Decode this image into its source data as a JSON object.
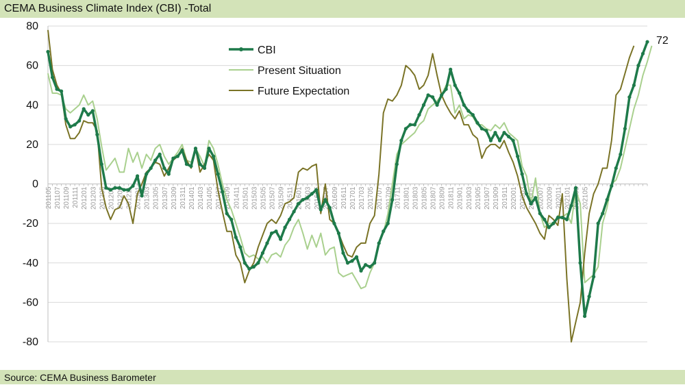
{
  "header": {
    "title": "CEMA Business Climate Index (CBI) -Total"
  },
  "footer": {
    "source": "Source: CEMA Business Barometer"
  },
  "chart_data": {
    "type": "line",
    "title": "CEMA Business Climate Index (CBI) -Total",
    "xlabel": "",
    "ylabel": "",
    "ylim": [
      -80,
      80
    ],
    "yticks": [
      -80,
      -60,
      -40,
      -20,
      0,
      20,
      40,
      60,
      80
    ],
    "grid": true,
    "legend_position": "top-center",
    "x_start": "2011-05",
    "x_end": "2021-05",
    "x_tick_labels": [
      "201105",
      "201107",
      "201109",
      "201111",
      "201201",
      "201203",
      "201205",
      "201207",
      "201209",
      "201211",
      "201301",
      "201303",
      "201305",
      "201307",
      "201309",
      "201311",
      "201401",
      "201403",
      "201405",
      "201407",
      "201409",
      "201411",
      "201501",
      "201503",
      "201505",
      "201507",
      "201509",
      "201511",
      "201601",
      "201603",
      "201605",
      "201607",
      "201609",
      "201611",
      "201701",
      "201703",
      "201705",
      "201707",
      "201709",
      "201711",
      "201801",
      "201803",
      "201805",
      "201807",
      "201809",
      "201811",
      "201901",
      "201903",
      "201905",
      "201907",
      "201909",
      "201911",
      "202001",
      "202003",
      "202005",
      "202007",
      "202009",
      "202011",
      "202101",
      "202103",
      "202105"
    ],
    "end_label": "72",
    "series": [
      {
        "name": "CBI",
        "color": "#1e7a4a",
        "markers": true,
        "values": [
          67,
          54,
          48,
          47,
          33,
          29,
          30,
          32,
          38,
          35,
          37,
          25,
          10,
          -2,
          -3,
          -2,
          -2,
          -3,
          -3,
          -1,
          4,
          -6,
          5,
          8,
          12,
          15,
          8,
          5,
          13,
          14,
          17,
          10,
          9,
          18,
          10,
          8,
          18,
          14,
          5,
          -4,
          -15,
          -18,
          -27,
          -32,
          -40,
          -43,
          -42,
          -40,
          -35,
          -30,
          -25,
          -24,
          -28,
          -22,
          -18,
          -14,
          -10,
          -8,
          -7,
          -5,
          -3,
          -13,
          -8,
          -12,
          -20,
          -25,
          -35,
          -40,
          -39,
          -37,
          -44,
          -41,
          -42,
          -40,
          -30,
          -24,
          -20,
          -8,
          10,
          22,
          28,
          30,
          30,
          35,
          40,
          45,
          44,
          40,
          45,
          48,
          58,
          50,
          46,
          40,
          37,
          35,
          31,
          28,
          27,
          22,
          26,
          22,
          26,
          24,
          22,
          14,
          5,
          -5,
          -10,
          -7,
          -15,
          -18,
          -22,
          -20,
          -17,
          -17,
          -18,
          -11,
          -2,
          -40,
          -67,
          -57,
          -47,
          -20,
          -15,
          -8,
          -1,
          8,
          15,
          28,
          44,
          50,
          60,
          66,
          72
        ]
      },
      {
        "name": "Present Situation",
        "color": "#a9d08e",
        "markers": false,
        "values": [
          56,
          46,
          46,
          45,
          38,
          36,
          38,
          40,
          45,
          40,
          42,
          33,
          19,
          7,
          10,
          13,
          6,
          6,
          18,
          11,
          16,
          8,
          15,
          12,
          18,
          20,
          14,
          10,
          13,
          16,
          20,
          12,
          11,
          18,
          14,
          9,
          22,
          18,
          10,
          0,
          -8,
          -13,
          -20,
          -27,
          -35,
          -37,
          -36,
          -38,
          -37,
          -40,
          -36,
          -35,
          -37,
          -31,
          -28,
          -22,
          -18,
          -25,
          -33,
          -26,
          -32,
          -25,
          -36,
          -33,
          -32,
          -45,
          -47,
          -46,
          -45,
          -49,
          -53,
          -52,
          -45,
          -40,
          -30,
          -25,
          -15,
          0,
          15,
          20,
          22,
          24,
          26,
          30,
          32,
          38,
          40,
          42,
          45,
          50,
          50,
          36,
          40,
          33,
          35,
          34,
          30,
          30,
          28,
          27,
          30,
          28,
          31,
          26,
          24,
          22,
          9,
          4,
          -10,
          3,
          -15,
          -22,
          -20,
          -20,
          -16,
          -17,
          -15,
          -20,
          -3,
          -10,
          -50,
          -48,
          -46,
          -42,
          -20,
          -12,
          0,
          2,
          8,
          18,
          28,
          38,
          45,
          55,
          62,
          70
        ]
      },
      {
        "name": "Future Expectation",
        "color": "#7a7326",
        "markers": false,
        "values": [
          78,
          58,
          50,
          46,
          30,
          23,
          23,
          26,
          32,
          31,
          31,
          27,
          -2,
          -12,
          -18,
          -13,
          -12,
          -6,
          -10,
          -20,
          -5,
          0,
          6,
          8,
          11,
          10,
          4,
          8,
          12,
          14,
          18,
          12,
          8,
          18,
          6,
          10,
          15,
          12,
          -3,
          -14,
          -24,
          -24,
          -36,
          -40,
          -50,
          -44,
          -40,
          -32,
          -26,
          -20,
          -18,
          -20,
          -16,
          -10,
          -9,
          -7,
          6,
          8,
          7,
          9,
          10,
          -15,
          0,
          -18,
          -20,
          -25,
          -31,
          -36,
          -37,
          -32,
          -30,
          -30,
          -20,
          -16,
          5,
          36,
          43,
          42,
          45,
          50,
          60,
          58,
          55,
          48,
          50,
          55,
          66,
          55,
          45,
          40,
          36,
          33,
          37,
          30,
          30,
          25,
          23,
          13,
          18,
          20,
          20,
          18,
          22,
          16,
          11,
          4,
          -6,
          -12,
          -16,
          -20,
          -25,
          -28,
          -16,
          -18,
          -21,
          -5,
          -48,
          -80,
          -70,
          -60,
          -35,
          -15,
          -5,
          0,
          8,
          8,
          22,
          45,
          48,
          56,
          64,
          70
        ]
      }
    ]
  }
}
